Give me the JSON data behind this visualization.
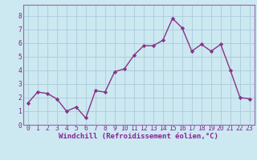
{
  "x": [
    0,
    1,
    2,
    3,
    4,
    5,
    6,
    7,
    8,
    9,
    10,
    11,
    12,
    13,
    14,
    15,
    16,
    17,
    18,
    19,
    20,
    21,
    22,
    23
  ],
  "y": [
    1.6,
    2.4,
    2.3,
    1.9,
    1.0,
    1.3,
    0.5,
    2.5,
    2.4,
    3.9,
    4.1,
    5.1,
    5.8,
    5.8,
    6.2,
    7.8,
    7.1,
    5.4,
    5.9,
    5.4,
    5.9,
    4.0,
    2.0,
    1.9
  ],
  "line_color": "#883388",
  "marker": "D",
  "marker_size": 2.2,
  "linewidth": 1.0,
  "xlabel": "Windchill (Refroidissement éolien,°C)",
  "xlabel_fontsize": 6.5,
  "xlim": [
    -0.5,
    23.5
  ],
  "ylim": [
    0,
    8.8
  ],
  "yticks": [
    0,
    1,
    2,
    3,
    4,
    5,
    6,
    7,
    8
  ],
  "xticks": [
    0,
    1,
    2,
    3,
    4,
    5,
    6,
    7,
    8,
    9,
    10,
    11,
    12,
    13,
    14,
    15,
    16,
    17,
    18,
    19,
    20,
    21,
    22,
    23
  ],
  "tick_fontsize": 5.8,
  "background_color": "#cce8f0",
  "grid_color": "#aaccdd",
  "spine_color": "#9966aa",
  "text_color": "#882299"
}
